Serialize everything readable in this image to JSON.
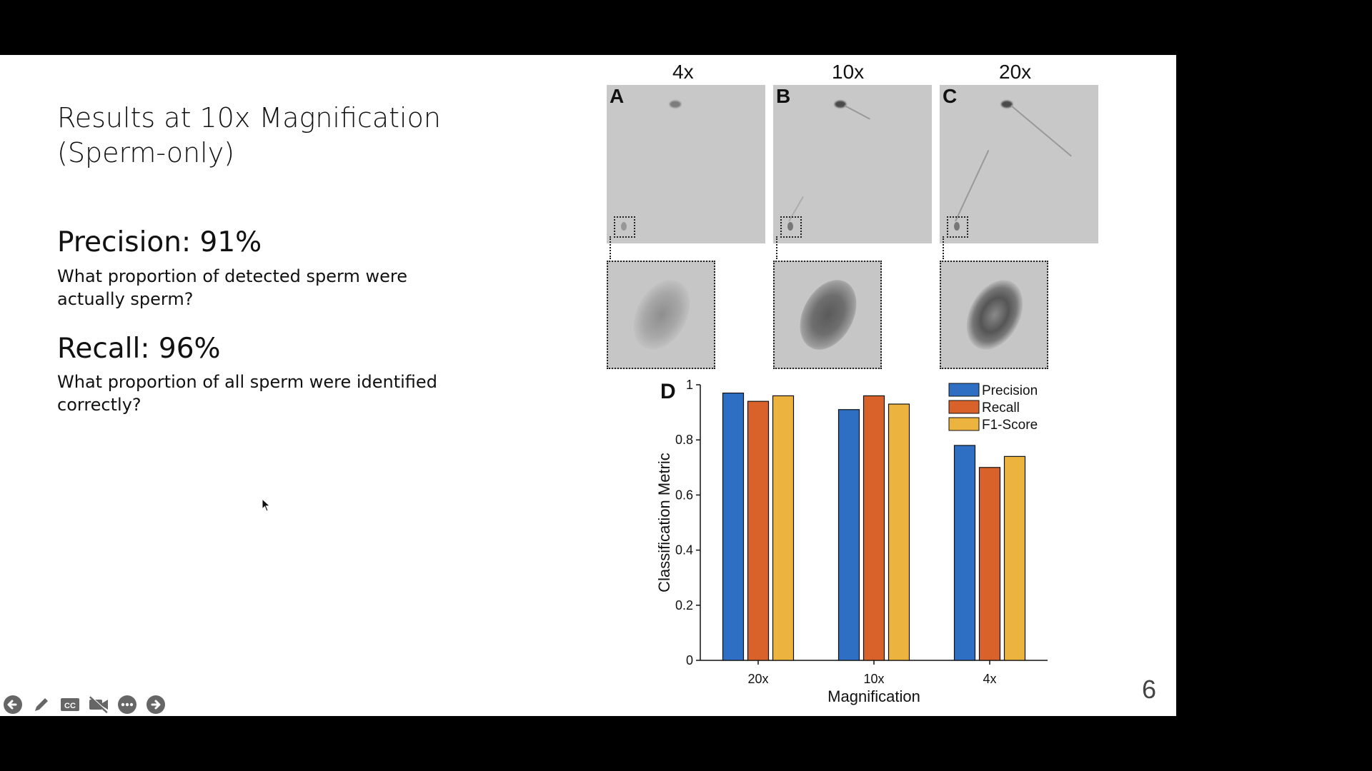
{
  "slide": {
    "title": "Results at 10x Magnification (Sperm-only)",
    "precision": {
      "label": "Precision: 91%",
      "description": "What proportion of detected sperm were actually sperm?"
    },
    "recall": {
      "label": "Recall: 96%",
      "description": "What proportion of all sperm were identified correctly?"
    },
    "page_number": "6"
  },
  "figure": {
    "panels": [
      {
        "letter": "A",
        "magnification": "4x"
      },
      {
        "letter": "B",
        "magnification": "10x"
      },
      {
        "letter": "C",
        "magnification": "20x"
      }
    ]
  },
  "chart_data": {
    "type": "bar",
    "panel_letter": "D",
    "categories": [
      "20x",
      "10x",
      "4x"
    ],
    "series": [
      {
        "name": "Precision",
        "color": "#2e6fc4",
        "values": [
          0.97,
          0.91,
          0.78
        ]
      },
      {
        "name": "Recall",
        "color": "#d9622b",
        "values": [
          0.94,
          0.96,
          0.7
        ]
      },
      {
        "name": "F1-Score",
        "color": "#ecb33f",
        "values": [
          0.96,
          0.93,
          0.74
        ]
      }
    ],
    "xlabel": "Magnification",
    "ylabel": "Classification Metric",
    "ylim": [
      0,
      1
    ],
    "yticks": [
      "0",
      "0.2",
      "0.4",
      "0.6",
      "0.8",
      "1"
    ],
    "legend_position": "top-right",
    "grid": false
  },
  "toolbar": {
    "icons": [
      "previous-icon",
      "pen-icon",
      "captions-icon",
      "video-off-icon",
      "more-icon",
      "next-icon"
    ]
  }
}
